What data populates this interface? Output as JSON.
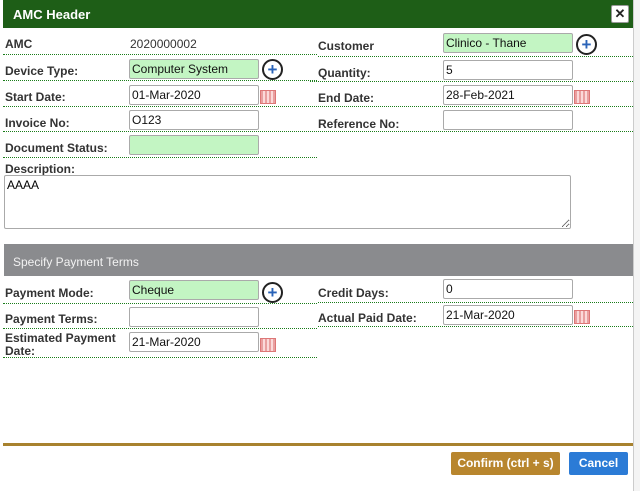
{
  "dialog": {
    "title": "AMC Header",
    "close_icon": "close-icon"
  },
  "fields": {
    "amc": {
      "label": "AMC",
      "value": "2020000002"
    },
    "customer": {
      "label": "Customer",
      "value": "Clinico - Thane"
    },
    "device_type": {
      "label": "Device Type:",
      "value": "Computer System"
    },
    "quantity": {
      "label": "Quantity:",
      "value": "5"
    },
    "start_date": {
      "label": "Start Date:",
      "value": "01-Mar-2020"
    },
    "end_date": {
      "label": "End Date:",
      "value": "28-Feb-2021"
    },
    "invoice_no": {
      "label": "Invoice No:",
      "value": "O123"
    },
    "reference_no": {
      "label": "Reference No:",
      "value": ""
    },
    "document_status": {
      "label": "Document Status:",
      "value": ""
    },
    "description": {
      "label": "Description:",
      "value": "AAAA"
    }
  },
  "payment": {
    "section_title": "Specify Payment Terms",
    "payment_mode": {
      "label": "Payment Mode:",
      "value": "Cheque"
    },
    "credit_days": {
      "label": "Credit Days:",
      "value": "0"
    },
    "payment_terms": {
      "label": "Payment Terms:",
      "value": ""
    },
    "actual_paid_date": {
      "label": "Actual Paid Date:",
      "value": "21-Mar-2020"
    },
    "estimated_payment_date": {
      "label": "Estimated Payment Date:",
      "value": "21-Mar-2020"
    }
  },
  "footer": {
    "confirm_label": "Confirm (ctrl + s)",
    "cancel_label": "Cancel"
  },
  "colors": {
    "header": "#1e5e17",
    "section": "#8a8b8e",
    "confirm": "#b8862e",
    "cancel": "#2b7bd6",
    "required_field": "#c3f5c3"
  }
}
